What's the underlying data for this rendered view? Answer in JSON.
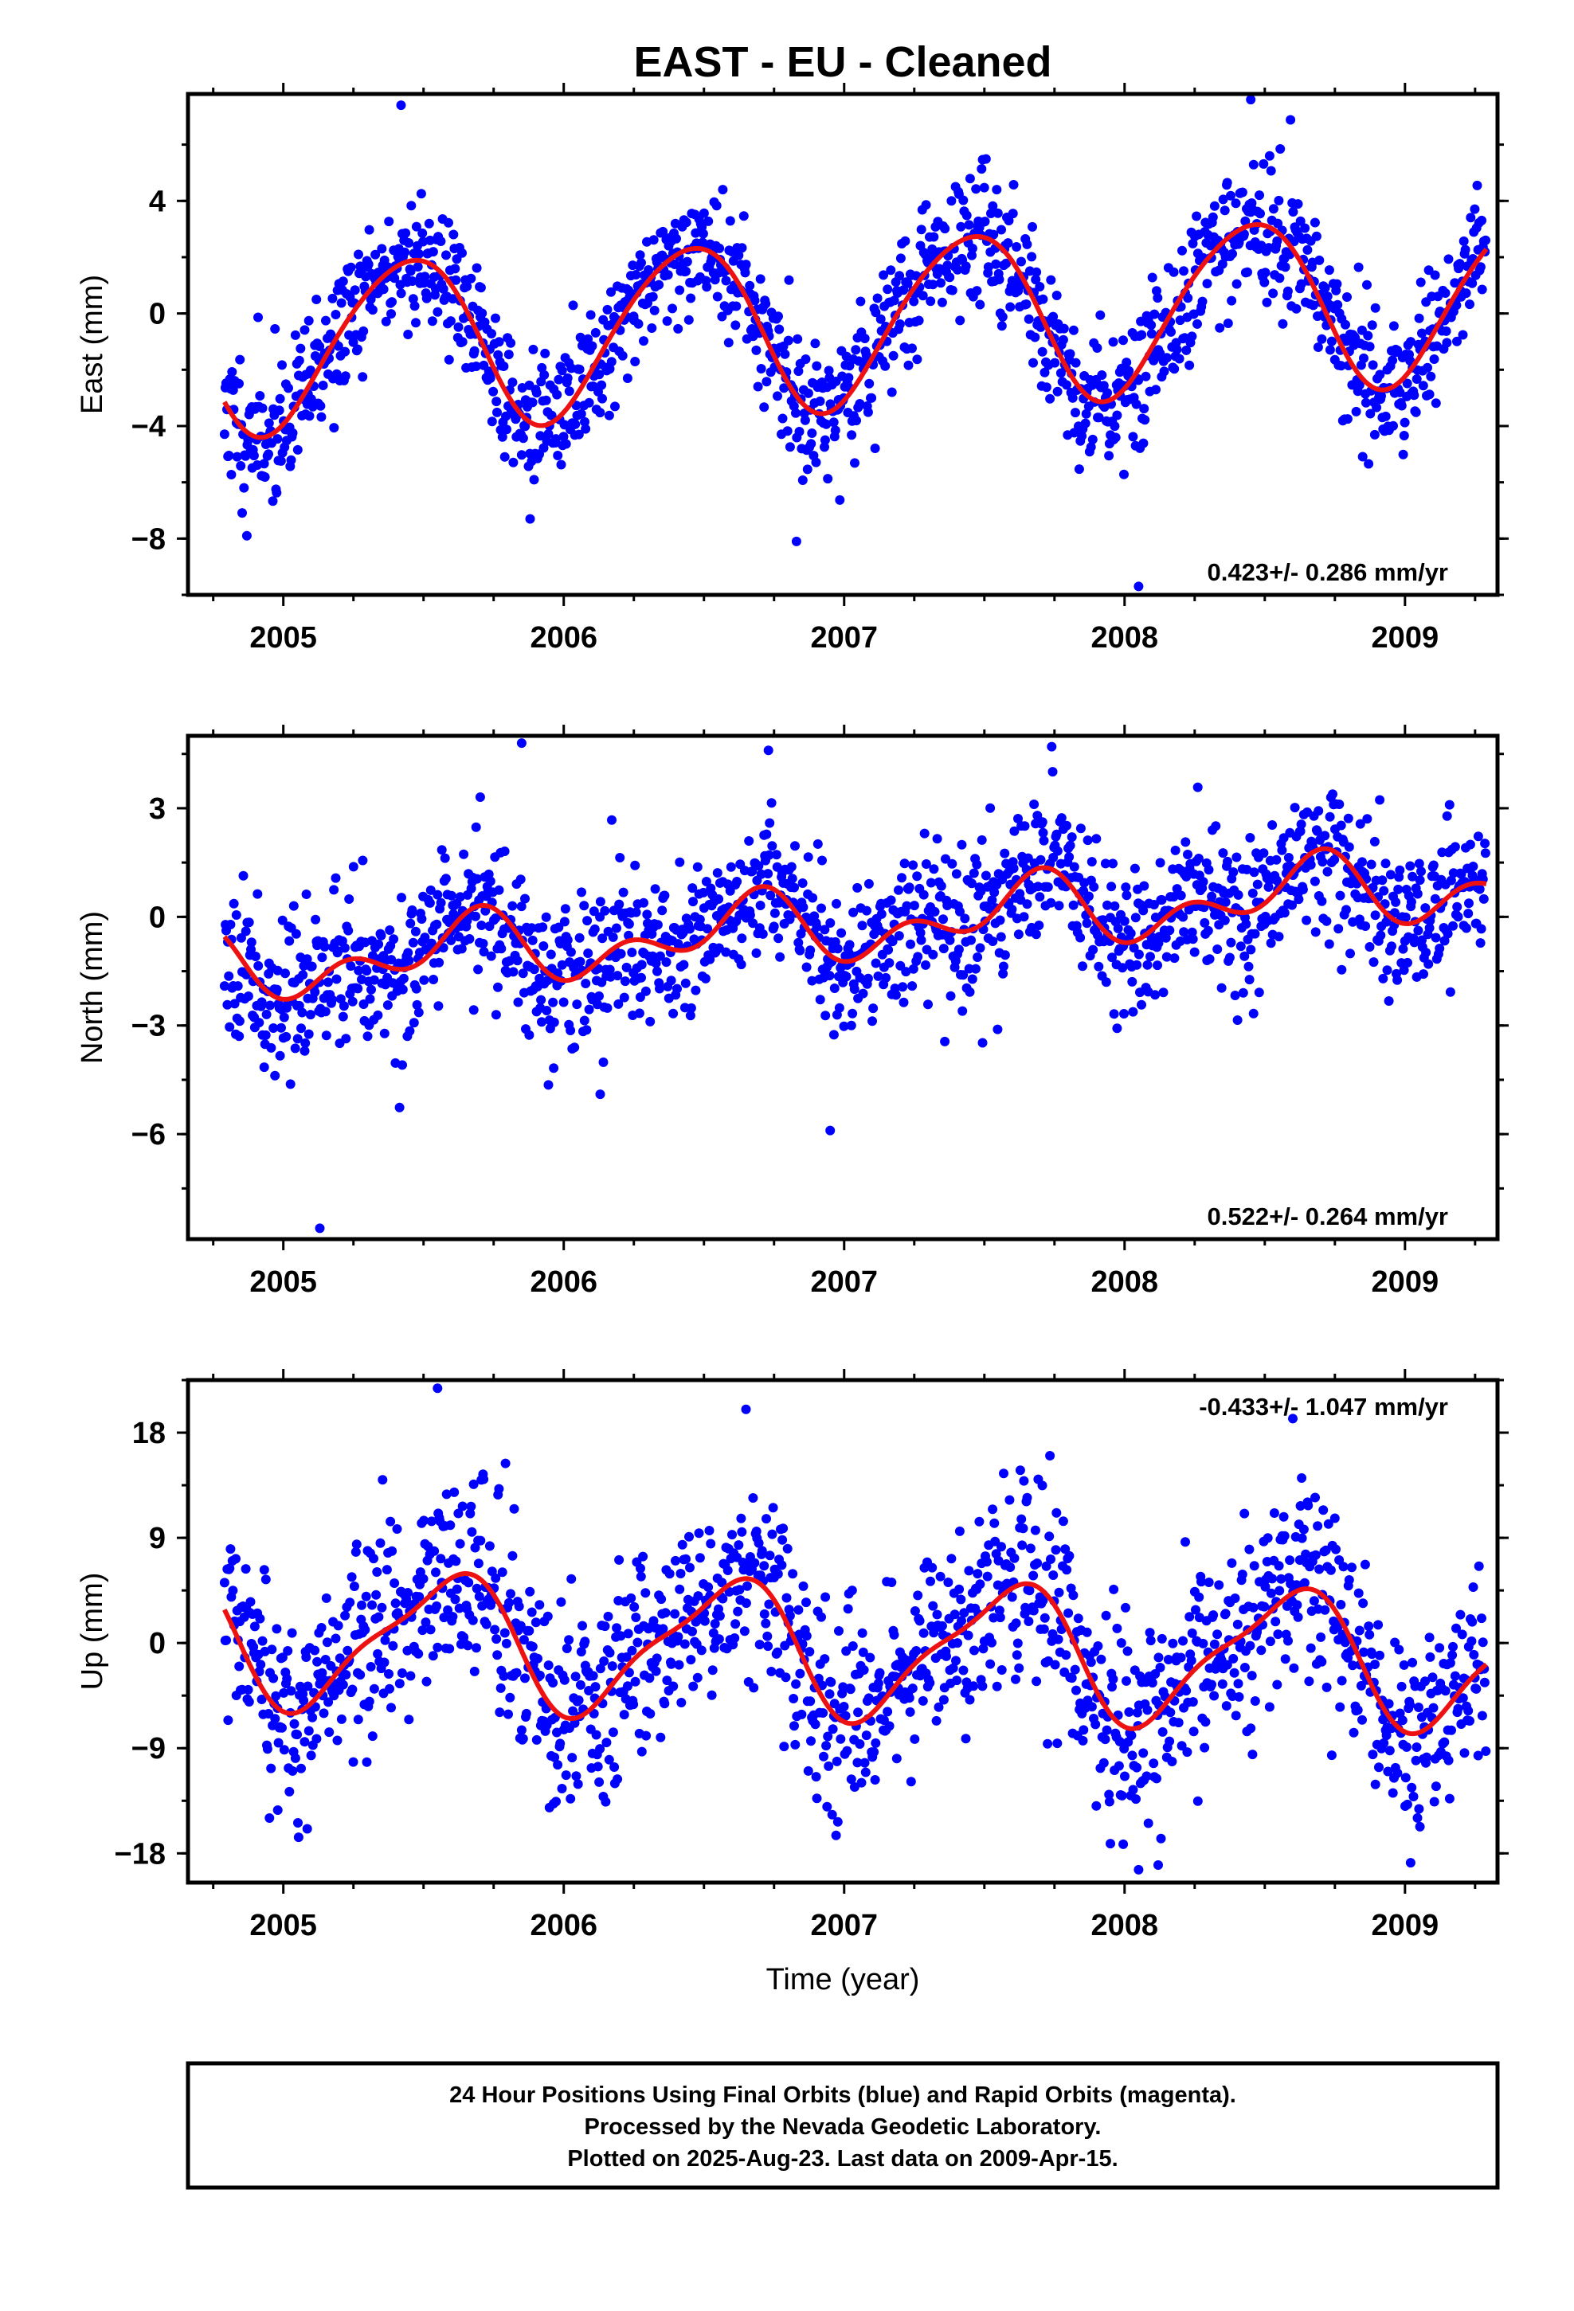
{
  "title": "EAST  - EU - Cleaned",
  "xlabel": "Time (year)",
  "colors": {
    "points": "#0000ff",
    "fit": "#ee1111",
    "frame": "#000000"
  },
  "chart_data": [
    {
      "type": "scatter",
      "name": "east",
      "ylabel": "East (mm)",
      "ylim": [
        -10,
        7.8
      ],
      "yticks": [
        4,
        0,
        -4,
        -8
      ],
      "xlim": [
        2004.66,
        2009.33
      ],
      "xticks": [
        2005,
        2006,
        2007,
        2008,
        2009
      ],
      "x_start": 2004.79,
      "x_end": 2009.29,
      "rate_text": "0.423+/- 0.286 mm/yr",
      "rate_position": "bottom-right",
      "trend": {
        "offset": -0.3,
        "slope": 0.423
      },
      "annual": {
        "amp": 3.0,
        "phase": 2005.19
      },
      "semiannual": {
        "amp": 0.3,
        "phase": 2005.0
      },
      "noise_sd": 1.2,
      "n_points": 1500,
      "seed": 11,
      "outliers": [
        [
          2004.87,
          -7.9
        ],
        [
          2008.05,
          -9.7
        ],
        [
          2005.42,
          7.4
        ],
        [
          2008.45,
          7.6
        ],
        [
          2006.83,
          -8.1
        ],
        [
          2005.88,
          -7.3
        ]
      ]
    },
    {
      "type": "scatter",
      "name": "north",
      "ylabel": "North (mm)",
      "ylim": [
        -8.9,
        5.0
      ],
      "yticks": [
        3,
        0,
        -3,
        -6
      ],
      "xlim": [
        2004.66,
        2009.33
      ],
      "xticks": [
        2005,
        2006,
        2007,
        2008,
        2009
      ],
      "x_start": 2004.79,
      "x_end": 2009.29,
      "rate_text": "0.522+/- 0.264 mm/yr",
      "rate_position": "bottom-right",
      "trend": {
        "offset": -0.25,
        "slope": 0.522
      },
      "annual": {
        "amp": 0.7,
        "phase": 2005.4
      },
      "semiannual": {
        "amp": 0.6,
        "phase": 2005.1
      },
      "noise_sd": 1.05,
      "n_points": 1500,
      "seed": 23,
      "outliers": [
        [
          2005.13,
          -8.6
        ],
        [
          2006.95,
          -5.9
        ],
        [
          2006.13,
          -4.9
        ],
        [
          2005.85,
          4.8
        ],
        [
          2006.73,
          4.6
        ]
      ]
    },
    {
      "type": "scatter",
      "name": "up",
      "ylabel": "Up (mm)",
      "ylim": [
        -20.5,
        22.5
      ],
      "yticks": [
        18,
        9,
        0,
        -9,
        -18
      ],
      "xlim": [
        2004.66,
        2009.33
      ],
      "xticks": [
        2005,
        2006,
        2007,
        2008,
        2009
      ],
      "x_start": 2004.79,
      "x_end": 2009.29,
      "rate_text": "-0.433+/- 1.047 mm/yr",
      "rate_position": "top-right",
      "trend": {
        "offset": -0.5,
        "slope": -0.433
      },
      "annual": {
        "amp": 5.5,
        "phase": 2005.33
      },
      "semiannual": {
        "amp": 1.5,
        "phase": 2005.1
      },
      "noise_sd": 4.3,
      "n_points": 1500,
      "seed": 37,
      "outliers": [
        [
          2005.55,
          21.8
        ],
        [
          2006.65,
          20.0
        ],
        [
          2008.05,
          -19.4
        ],
        [
          2008.12,
          -19.0
        ],
        [
          2008.6,
          19.2
        ],
        [
          2004.98,
          -14.3
        ]
      ]
    }
  ],
  "footer": {
    "lines": [
      "24 Hour Positions Using Final Orbits (blue) and Rapid Orbits (magenta).",
      "Processed by the Nevada Geodetic Laboratory.",
      "Plotted on 2025-Aug-23. Last data on 2009-Apr-15."
    ]
  }
}
